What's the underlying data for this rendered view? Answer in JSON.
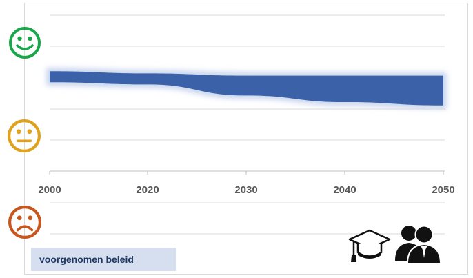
{
  "colors": {
    "band": "#2f58a3",
    "band_light": "#c9d6ee",
    "grid": "#d9d9d9",
    "happy": "#18a84a",
    "neutral": "#e0a21c",
    "sad": "#c8561d",
    "legend_bg": "#d6dff0"
  },
  "icons": {
    "happy_face": "happy-face-icon",
    "neutral_face": "neutral-face-icon",
    "sad_face": "sad-face-icon",
    "education": "graduation-cap-icon",
    "people": "people-icon"
  },
  "legend": {
    "label": "voorgenomen beleid"
  },
  "chart_data": {
    "type": "area",
    "x": [
      2000,
      2020,
      2030,
      2040,
      2050
    ],
    "x_tick_labels": [
      "2000",
      "2020",
      "2030",
      "2040",
      "2050"
    ],
    "xlim": [
      2000,
      2050
    ],
    "y_scale": "wellbeing (happy top, neutral middle, sad bottom)",
    "ylim": [
      0,
      1
    ],
    "band": {
      "name": "voorgenomen beleid",
      "upper": [
        0.74,
        0.73,
        0.72,
        0.72,
        0.72
      ],
      "lower": [
        0.69,
        0.68,
        0.63,
        0.6,
        0.585
      ]
    },
    "grid": true
  }
}
